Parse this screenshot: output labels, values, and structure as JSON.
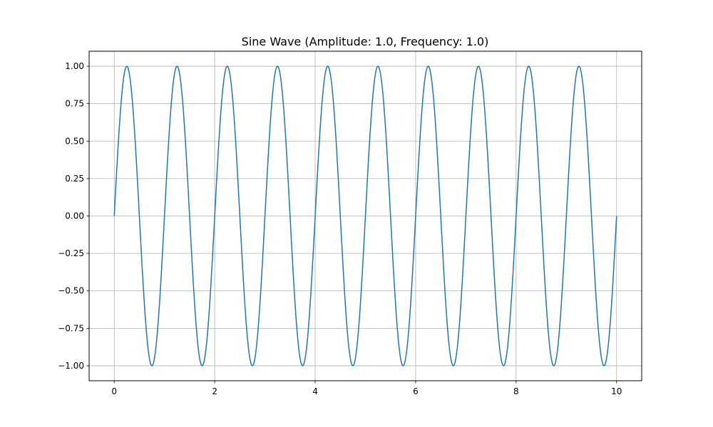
{
  "chart_data": {
    "type": "line",
    "title": "Sine Wave (Amplitude: 1.0, Frequency: 1.0)",
    "xlabel": "",
    "ylabel": "",
    "series": [
      {
        "function": "sine",
        "amplitude": 1.0,
        "frequency": 1.0,
        "x_range": [
          0,
          10
        ],
        "color": "#1f77b4"
      }
    ],
    "xlim": [
      -0.5,
      10.5
    ],
    "ylim": [
      -1.1,
      1.1
    ],
    "x_ticks": [
      0,
      2,
      4,
      6,
      8,
      10
    ],
    "x_tick_labels": [
      "0",
      "2",
      "4",
      "6",
      "8",
      "10"
    ],
    "y_ticks": [
      1.0,
      0.75,
      0.5,
      0.25,
      0.0,
      -0.25,
      -0.5,
      -0.75,
      -1.0
    ],
    "y_tick_labels": [
      "1.00",
      "0.75",
      "0.50",
      "0.25",
      "0.00",
      "−0.25",
      "−0.50",
      "−0.75",
      "−1.00"
    ],
    "grid": true,
    "grid_color": "#b0b0b0",
    "legend": "none"
  }
}
